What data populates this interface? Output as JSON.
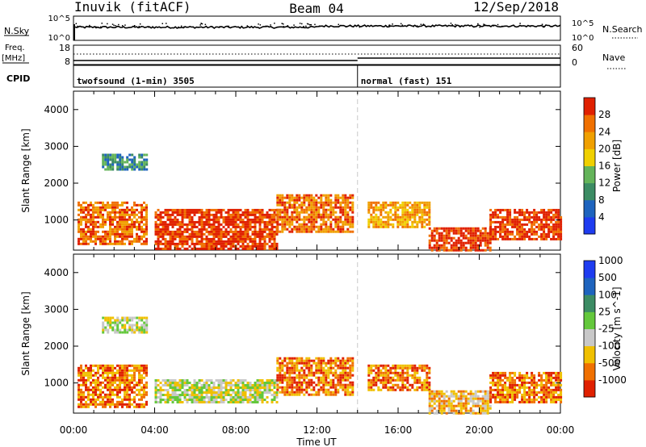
{
  "header": {
    "station": "Inuvik (fitACF)",
    "beam": "Beam 04",
    "date": "12/Sep/2018"
  },
  "strips": {
    "nsky_label": "N.Sky",
    "nsky_ticks": [
      "10^5",
      "10^0"
    ],
    "nsearch_label": "N.Search",
    "freq_label_1": "Freq.",
    "freq_label_2": "[MHz]",
    "freq_ticks": [
      "18",
      "8"
    ],
    "nave_label": "Nave",
    "nave_ticks": [
      "60",
      "0"
    ],
    "cpid_label": "CPID",
    "cpid_segments": [
      {
        "label": "twofsound (1-min) 3505",
        "start_hour": 0
      },
      {
        "label": "normal (fast) 151",
        "start_hour": 14
      }
    ]
  },
  "xaxis": {
    "label": "Time UT",
    "ticks": [
      "00:00",
      "04:00",
      "08:00",
      "12:00",
      "16:00",
      "20:00",
      "00:00"
    ]
  },
  "chart_data": [
    {
      "type": "heatmap",
      "name": "power",
      "ylabel": "Slant Range [km]",
      "yticks": [
        1000,
        2000,
        3000,
        4000
      ],
      "ylim": [
        180,
        4500
      ],
      "xlim_hours": [
        0,
        24
      ],
      "colorbar_label": "Power [dB]",
      "colorbar_ticks": [
        "4",
        "8",
        "12",
        "16",
        "20",
        "24",
        "28"
      ],
      "colors": [
        "#1e3cf0",
        "#1e64be",
        "#3c8c64",
        "#64b45a",
        "#f0d000",
        "#f0a000",
        "#f07000",
        "#e02000"
      ],
      "regions": [
        {
          "t0": 0.2,
          "t1": 3.6,
          "r0": 350,
          "r1": 1500,
          "level": 6
        },
        {
          "t0": 1.4,
          "t1": 3.6,
          "r0": 2400,
          "r1": 2800,
          "level": 2
        },
        {
          "t0": 4.0,
          "t1": 10.0,
          "r0": 200,
          "r1": 1300,
          "level": 7
        },
        {
          "t0": 10.0,
          "t1": 13.8,
          "r0": 700,
          "r1": 1700,
          "level": 6
        },
        {
          "t0": 14.5,
          "t1": 17.5,
          "r0": 800,
          "r1": 1500,
          "level": 5
        },
        {
          "t0": 17.5,
          "t1": 20.5,
          "r0": 200,
          "r1": 800,
          "level": 7
        },
        {
          "t0": 20.5,
          "t1": 24.0,
          "r0": 450,
          "r1": 1300,
          "level": 7
        }
      ]
    },
    {
      "type": "heatmap",
      "name": "velocity",
      "ylabel": "Slant Range [km]",
      "yticks": [
        1000,
        2000,
        3000,
        4000
      ],
      "ylim": [
        180,
        4500
      ],
      "xlim_hours": [
        0,
        24
      ],
      "colorbar_label": "Velocity [m s^-1]",
      "colorbar_ticks": [
        "1000",
        "500",
        "100",
        "25",
        "-25",
        "-100",
        "-500",
        "-1000"
      ],
      "colors": [
        "#1e3cf0",
        "#1e64be",
        "#3c8c64",
        "#64c83c",
        "#c8c8c8",
        "#f0c000",
        "#f07000",
        "#e02000"
      ],
      "regions": [
        {
          "t0": 0.2,
          "t1": 3.6,
          "r0": 350,
          "r1": 1500,
          "level": 6
        },
        {
          "t0": 1.4,
          "t1": 3.6,
          "r0": 2400,
          "r1": 2800,
          "level": 4
        },
        {
          "t0": 4.0,
          "t1": 10.0,
          "r0": 500,
          "r1": 1100,
          "level": 4
        },
        {
          "t0": 10.0,
          "t1": 13.8,
          "r0": 700,
          "r1": 1700,
          "level": 6
        },
        {
          "t0": 14.5,
          "t1": 17.5,
          "r0": 800,
          "r1": 1500,
          "level": 6
        },
        {
          "t0": 17.5,
          "t1": 20.5,
          "r0": 200,
          "r1": 800,
          "level": 5
        },
        {
          "t0": 20.5,
          "t1": 24.0,
          "r0": 450,
          "r1": 1300,
          "level": 6
        }
      ]
    }
  ]
}
